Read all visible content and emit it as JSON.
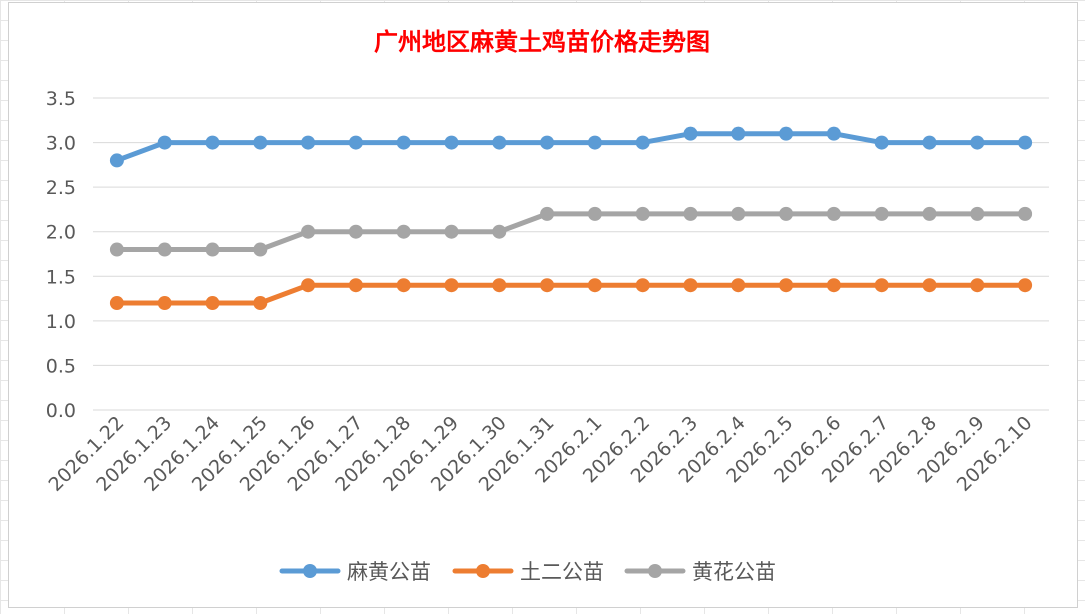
{
  "chart_data": {
    "type": "line",
    "title": "广州地区麻黄土鸡苗价格走势图",
    "xlabel": "",
    "ylabel": "",
    "categories": [
      "2026.1.22",
      "2026.1.23",
      "2026.1.24",
      "2026.1.25",
      "2026.1.26",
      "2026.1.27",
      "2026.1.28",
      "2026.1.29",
      "2026.1.30",
      "2026.1.31",
      "2026.2.1",
      "2026.2.2",
      "2026.2.3",
      "2026.2.4",
      "2026.2.5",
      "2026.2.6",
      "2026.2.7",
      "2026.2.8",
      "2026.2.9",
      "2026.2.10"
    ],
    "yticks": [
      "0.0",
      "0.5",
      "1.0",
      "1.5",
      "2.0",
      "2.5",
      "3.0",
      "3.5"
    ],
    "ylim": [
      0,
      3.5
    ],
    "grid": true,
    "legend_position": "bottom",
    "title_color": "#ff0000",
    "series": [
      {
        "name": "麻黄公苗",
        "color": "#5b9bd5",
        "values": [
          2.8,
          3.0,
          3.0,
          3.0,
          3.0,
          3.0,
          3.0,
          3.0,
          3.0,
          3.0,
          3.0,
          3.0,
          3.1,
          3.1,
          3.1,
          3.1,
          3.0,
          3.0,
          3.0,
          3.0
        ]
      },
      {
        "name": "土二公苗",
        "color": "#ed7d31",
        "values": [
          1.2,
          1.2,
          1.2,
          1.2,
          1.4,
          1.4,
          1.4,
          1.4,
          1.4,
          1.4,
          1.4,
          1.4,
          1.4,
          1.4,
          1.4,
          1.4,
          1.4,
          1.4,
          1.4,
          1.4
        ]
      },
      {
        "name": "黄花公苗",
        "color": "#a5a5a5",
        "values": [
          1.8,
          1.8,
          1.8,
          1.8,
          2.0,
          2.0,
          2.0,
          2.0,
          2.0,
          2.2,
          2.2,
          2.2,
          2.2,
          2.2,
          2.2,
          2.2,
          2.2,
          2.2,
          2.2,
          2.2
        ]
      }
    ]
  }
}
